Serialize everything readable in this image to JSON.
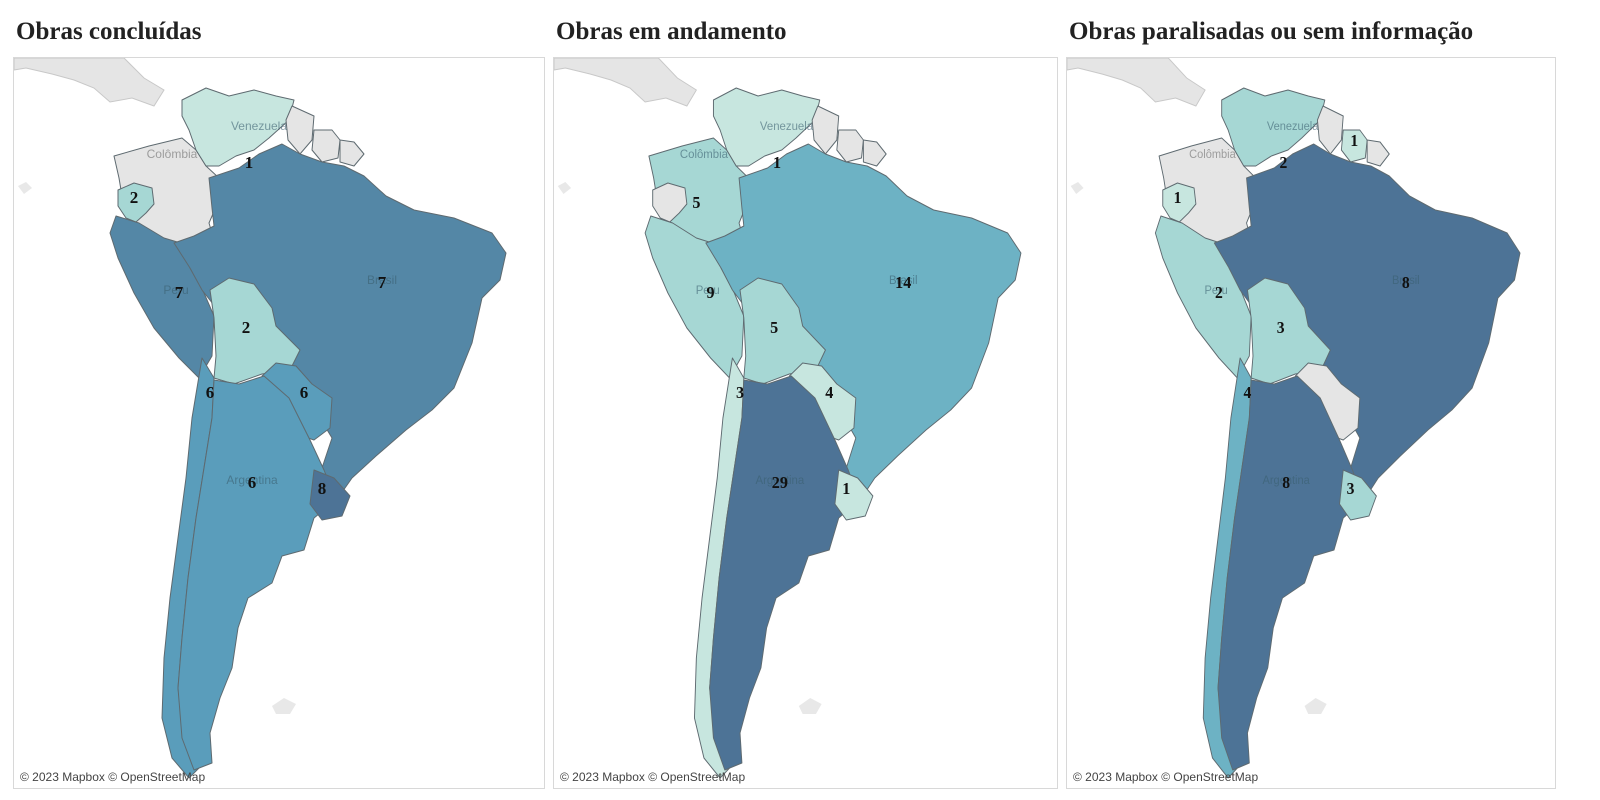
{
  "palette": {
    "c1": "#c7e6df",
    "c2": "#a6d7d4",
    "c3": "#6db2c4",
    "c4": "#5a9dbb",
    "c5": "#5487a6",
    "c6": "#4d7396",
    "none": "#e5e5e5",
    "border": "#5e6a70"
  },
  "attribution": "© 2023 Mapbox © OpenStreetMap",
  "country_names": {
    "colombia": "Colômbia",
    "venezuela": "Venezuela",
    "peru": "Peru",
    "brazil": "Brasil",
    "argentina": "Argentina"
  },
  "panels": [
    {
      "title": "Obras concluídas",
      "values": {
        "venezuela": "1",
        "ecuador": "2",
        "peru": "7",
        "brazil": "7",
        "bolivia": "2",
        "chile": "6",
        "paraguay": "6",
        "argentina": "6",
        "uruguay": "8"
      },
      "fills": {
        "colombia": "none",
        "venezuela": "c1",
        "ecuador": "c2",
        "peru": "c5",
        "brazil": "c5",
        "bolivia": "c2",
        "chile": "c4",
        "paraguay": "c4",
        "argentina": "c4",
        "uruguay": "c6",
        "guyana": "none",
        "suriname": "none",
        "frenchguiana": "none"
      },
      "names_shown": [
        "colombia",
        "venezuela",
        "peru",
        "brazil",
        "argentina"
      ]
    },
    {
      "title": "Obras em andamento",
      "values": {
        "venezuela": "1",
        "colombia": "5",
        "peru": "9",
        "brazil": "14",
        "bolivia": "5",
        "chile": "3",
        "paraguay": "4",
        "argentina": "29",
        "uruguay": "1"
      },
      "fills": {
        "colombia": "c2",
        "venezuela": "c1",
        "ecuador": "none",
        "peru": "c2",
        "brazil": "c3",
        "bolivia": "c2",
        "chile": "c1",
        "paraguay": "c1",
        "argentina": "c6",
        "uruguay": "c1",
        "guyana": "none",
        "suriname": "none",
        "frenchguiana": "none"
      },
      "names_shown": [
        "colombia",
        "venezuela",
        "peru",
        "brazil",
        "argentina"
      ]
    },
    {
      "title": "Obras paralisadas ou sem informação",
      "values": {
        "venezuela": "2",
        "suriname": "1",
        "ecuador": "1",
        "peru": "2",
        "brazil": "8",
        "bolivia": "3",
        "chile": "4",
        "argentina": "8",
        "uruguay": "3"
      },
      "fills": {
        "colombia": "none",
        "venezuela": "c2",
        "ecuador": "c1",
        "peru": "c2",
        "brazil": "c6",
        "bolivia": "c2",
        "chile": "c3",
        "paraguay": "none",
        "argentina": "c6",
        "uruguay": "c2",
        "guyana": "none",
        "suriname": "c1",
        "frenchguiana": "none"
      },
      "names_shown": [
        "colombia",
        "venezuela",
        "peru",
        "brazil",
        "argentina"
      ]
    }
  ]
}
